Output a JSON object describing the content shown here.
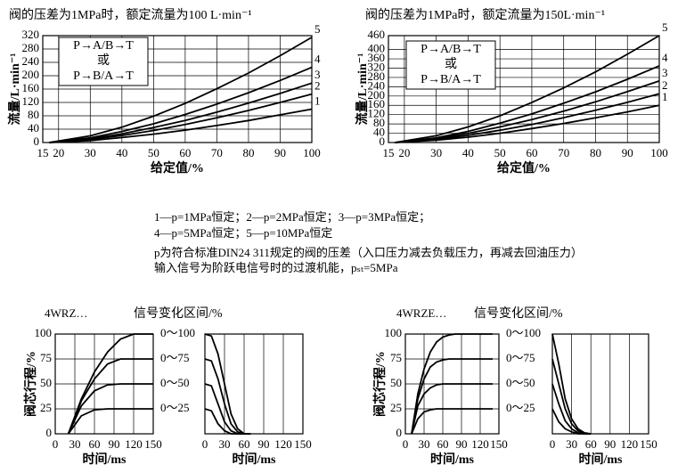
{
  "chart_data": [
    {
      "type": "line",
      "title": "阀的压差为1MPa时，额定流量为100 L·min⁻¹",
      "xlabel": "给定值/%",
      "ylabel": "流量/L·min⁻¹",
      "annotations": [
        "P→A/B→T",
        "或",
        "P→B/A→T"
      ],
      "xlim": [
        15,
        100
      ],
      "ylim": [
        0,
        320
      ],
      "xticks": [
        15,
        20,
        30,
        40,
        50,
        60,
        70,
        80,
        90,
        100
      ],
      "yticks": [
        0,
        40,
        80,
        120,
        160,
        200,
        240,
        280,
        320
      ],
      "grid": true,
      "x": [
        17,
        30,
        40,
        50,
        60,
        70,
        80,
        90,
        100
      ],
      "series": [
        {
          "name": "5",
          "color": "#000000",
          "values": [
            0,
            20,
            46,
            79,
            117,
            161,
            208,
            260,
            315
          ]
        },
        {
          "name": "4",
          "color": "#000000",
          "values": [
            0,
            14,
            33,
            56,
            84,
            115,
            149,
            186,
            225
          ]
        },
        {
          "name": "3",
          "color": "#000000",
          "values": [
            0,
            11,
            26,
            45,
            66,
            91,
            118,
            147,
            178
          ]
        },
        {
          "name": "2",
          "color": "#000000",
          "values": [
            0,
            9,
            21,
            36,
            54,
            74,
            96,
            120,
            145
          ]
        },
        {
          "name": "1",
          "color": "#000000",
          "values": [
            0,
            6,
            15,
            25,
            37,
            51,
            66,
            83,
            100
          ]
        }
      ]
    },
    {
      "type": "line",
      "title": "阀的压差为1MPa时，额定流量为150L·min⁻¹",
      "xlabel": "给定值/%",
      "ylabel": "流量/L·min⁻¹",
      "annotations": [
        "P→A/B→T",
        "或",
        "P→B/A→T"
      ],
      "xlim": [
        15,
        100
      ],
      "ylim": [
        0,
        460
      ],
      "xticks": [
        15,
        20,
        30,
        40,
        50,
        60,
        70,
        80,
        90,
        100
      ],
      "yticks": [
        0,
        40,
        80,
        120,
        160,
        200,
        240,
        280,
        320,
        360,
        400,
        460
      ],
      "grid": true,
      "x": [
        17,
        30,
        40,
        50,
        60,
        70,
        80,
        90,
        100
      ],
      "series": [
        {
          "name": "5",
          "color": "#000000",
          "values": [
            0,
            29,
            67,
            115,
            172,
            235,
            304,
            380,
            460
          ]
        },
        {
          "name": "4",
          "color": "#000000",
          "values": [
            0,
            20,
            48,
            83,
            123,
            169,
            218,
            272,
            330
          ]
        },
        {
          "name": "3",
          "color": "#000000",
          "values": [
            0,
            16,
            39,
            67,
            99,
            135,
            175,
            219,
            265
          ]
        },
        {
          "name": "2",
          "color": "#000000",
          "values": [
            0,
            13,
            31,
            53,
            78,
            107,
            139,
            173,
            210
          ]
        },
        {
          "name": "1",
          "color": "#000000",
          "values": [
            0,
            10,
            23,
            40,
            60,
            82,
            106,
            132,
            160
          ]
        }
      ]
    },
    {
      "type": "line",
      "model": "4WRZ…",
      "title": "信号变化区间/%",
      "xlabel": "时间/ms",
      "ylabel": "阀芯行程/%",
      "xlim": [
        0,
        150
      ],
      "ylim": [
        0,
        100
      ],
      "xticks": [
        0,
        30,
        60,
        90,
        120,
        150
      ],
      "yticks": [
        0,
        25,
        50,
        75,
        100
      ],
      "grid": true,
      "x": [
        20,
        40,
        60,
        80,
        100,
        120,
        140,
        150
      ],
      "series": [
        {
          "name": "0～100",
          "color": "#000000",
          "values": [
            0,
            35,
            62,
            82,
            95,
            100,
            100,
            100
          ]
        },
        {
          "name": "0～75",
          "color": "#000000",
          "values": [
            0,
            33,
            55,
            70,
            75,
            75,
            75,
            75
          ]
        },
        {
          "name": "0～50",
          "color": "#000000",
          "values": [
            0,
            28,
            43,
            49,
            50,
            50,
            50,
            50
          ]
        },
        {
          "name": "0～25",
          "color": "#000000",
          "values": [
            0,
            18,
            24,
            25,
            25,
            25,
            25,
            25
          ]
        }
      ]
    },
    {
      "type": "line",
      "xlabel": "时间/ms",
      "xlim": [
        0,
        150
      ],
      "ylim": [
        0,
        100
      ],
      "xticks": [
        0,
        30,
        60,
        90,
        120,
        150
      ],
      "grid": true,
      "x": [
        0,
        10,
        20,
        30,
        40,
        50,
        60,
        70
      ],
      "series": [
        {
          "color": "#000000",
          "values": [
            100,
            98,
            80,
            50,
            20,
            5,
            0,
            0
          ]
        },
        {
          "color": "#000000",
          "values": [
            75,
            73,
            55,
            30,
            10,
            2,
            0,
            0
          ]
        },
        {
          "color": "#000000",
          "values": [
            50,
            48,
            30,
            12,
            3,
            0,
            0,
            0
          ]
        },
        {
          "color": "#000000",
          "values": [
            25,
            23,
            10,
            3,
            0,
            0,
            0,
            0
          ]
        }
      ]
    },
    {
      "type": "line",
      "model": "4WRZE…",
      "title": "信号变化区间/%",
      "xlabel": "时间/ms",
      "ylabel": "阀芯行程/%",
      "xlim": [
        0,
        150
      ],
      "ylim": [
        0,
        100
      ],
      "xticks": [
        0,
        30,
        60,
        90,
        120,
        150
      ],
      "yticks": [
        0,
        25,
        50,
        75,
        100
      ],
      "grid": true,
      "x": [
        10,
        20,
        30,
        40,
        50,
        60,
        70,
        80,
        100,
        140
      ],
      "series": [
        {
          "name": "0～100",
          "color": "#000000",
          "values": [
            0,
            40,
            65,
            82,
            92,
            97,
            99,
            100,
            100,
            100
          ]
        },
        {
          "name": "0～75",
          "color": "#000000",
          "values": [
            0,
            35,
            55,
            67,
            72,
            74,
            75,
            75,
            75,
            75
          ]
        },
        {
          "name": "0～50",
          "color": "#000000",
          "values": [
            0,
            28,
            40,
            46,
            49,
            50,
            50,
            50,
            50,
            50
          ]
        },
        {
          "name": "0～25",
          "color": "#000000",
          "values": [
            0,
            15,
            22,
            24,
            25,
            25,
            25,
            25,
            25,
            25
          ]
        }
      ]
    },
    {
      "type": "line",
      "xlabel": "时间/ms",
      "xlim": [
        0,
        150
      ],
      "ylim": [
        0,
        100
      ],
      "xticks": [
        0,
        30,
        60,
        90,
        120,
        150
      ],
      "grid": true,
      "x": [
        0,
        10,
        20,
        30,
        40,
        50,
        60
      ],
      "series": [
        {
          "color": "#000000",
          "values": [
            100,
            70,
            35,
            15,
            5,
            1,
            0
          ]
        },
        {
          "color": "#000000",
          "values": [
            75,
            50,
            25,
            10,
            3,
            0,
            0
          ]
        },
        {
          "color": "#000000",
          "values": [
            50,
            30,
            13,
            5,
            1,
            0,
            0
          ]
        },
        {
          "color": "#000000",
          "values": [
            25,
            12,
            5,
            2,
            0,
            0,
            0
          ]
        }
      ]
    }
  ],
  "notes": [
    "1—p=1MPa恒定；2—p=2MPa恒定；3—p=3MPa恒定；",
    "4—p=5MPa恒定；5—p=10MPa恒定",
    "p为符合标准DIN24 311规定的阀的压差（入口压力减去负载压力，再减去回油压力）",
    "输入信号为阶跃电信号时的过渡机能，pₛₜ=5MPa"
  ]
}
